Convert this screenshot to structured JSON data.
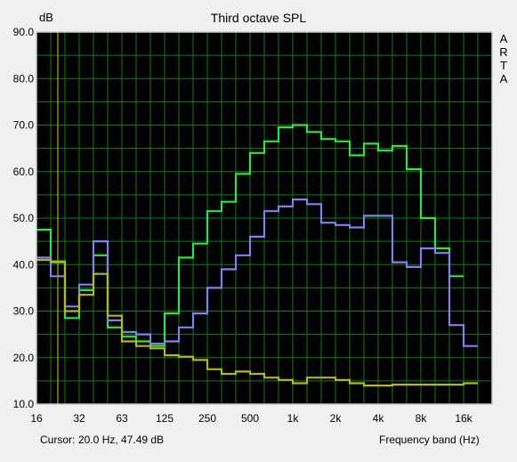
{
  "app": {
    "brand_letters": [
      "A",
      "R",
      "T",
      "A"
    ],
    "cursor_label": "Cursor:",
    "cursor_value": "20.0 Hz, 47.49 dB"
  },
  "colors": {
    "plot_background": "#000000",
    "grid": "#0a7f16",
    "frame": "#c8c8c8",
    "cursor_line": "#b0b000",
    "series_green": "#2ee63a",
    "series_blue": "#7f83f0",
    "series_yellow": "#b4b81a"
  },
  "chart_data": {
    "type": "line",
    "step": true,
    "title": "Third octave SPL",
    "ylabel": "dB",
    "xlabel": "Frequency band (Hz)",
    "ylim": [
      10,
      90
    ],
    "y_ticks": [
      "90.0",
      "80.0",
      "70.0",
      "60.0",
      "50.0",
      "40.0",
      "30.0",
      "20.0",
      "10.0"
    ],
    "x_tick_labels": [
      "16",
      "32",
      "63",
      "125",
      "250",
      "500",
      "1k",
      "2k",
      "4k",
      "8k",
      "16k"
    ],
    "x_scale": "log",
    "grid": true,
    "cursor": {
      "x": "20.0 Hz",
      "y": 47.49
    },
    "bands": [
      "16",
      "20",
      "25",
      "31.5",
      "40",
      "50",
      "63",
      "80",
      "100",
      "125",
      "160",
      "200",
      "250",
      "315",
      "400",
      "500",
      "630",
      "800",
      "1k",
      "1.25k",
      "1.6k",
      "2k",
      "2.5k",
      "3.15k",
      "4k",
      "5k",
      "6.3k",
      "8k",
      "10k",
      "12.5k",
      "16k"
    ],
    "series": [
      {
        "color": "#2ee63a",
        "values": [
          47.5,
          40.7,
          28.5,
          34.5,
          42,
          26.5,
          24.5,
          23.5,
          22.5,
          29.5,
          41.5,
          44.5,
          51.5,
          53.5,
          59.5,
          64,
          66.5,
          69.5,
          70,
          68.5,
          67,
          66.5,
          63.5,
          66,
          64.5,
          65.5,
          60.5,
          50,
          43.5,
          37.5,
          null
        ]
      },
      {
        "color": "#7f83f0",
        "values": [
          41.5,
          37.5,
          31,
          35.7,
          45,
          28,
          25.5,
          25,
          23,
          23.5,
          26.5,
          29.5,
          35,
          39,
          42,
          46,
          51.5,
          52.5,
          54,
          53,
          49,
          48.5,
          48,
          50.5,
          50.5,
          40.5,
          39.5,
          43.5,
          42.5,
          27,
          22.5
        ]
      },
      {
        "color": "#b4b81a",
        "values": [
          41,
          40.5,
          30,
          33.5,
          38,
          29,
          23.5,
          22.5,
          22,
          20.5,
          20.2,
          19.5,
          17.5,
          16.5,
          17,
          16.5,
          15.7,
          15.2,
          14.5,
          15.7,
          15.7,
          15.2,
          14.5,
          14,
          14,
          14.2,
          14.2,
          14.2,
          14.2,
          14.2,
          14.5
        ]
      }
    ]
  }
}
